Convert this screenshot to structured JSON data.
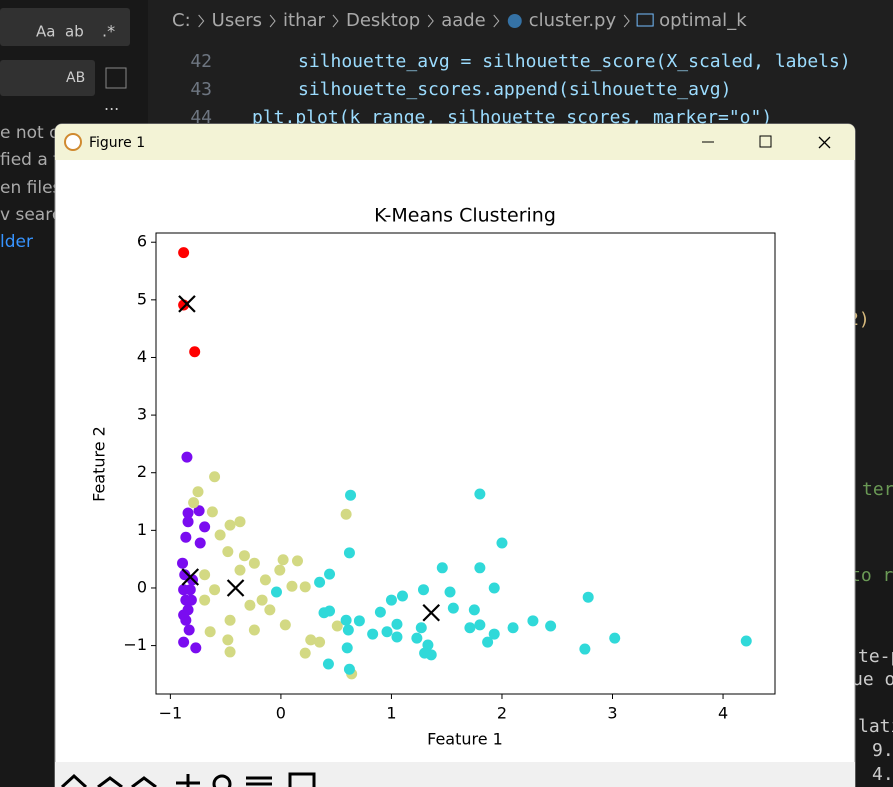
{
  "editor": {
    "search": {
      "options": [
        "Aa",
        "ab",
        ".*"
      ],
      "replace_option": "AB"
    },
    "sidebar_lines": [
      "e not o",
      "fied a f",
      "en files",
      "v search",
      "lder"
    ],
    "breadcrumb": [
      "C:",
      "Users",
      "ithar",
      "Desktop",
      "aade",
      "cluster.py",
      "optimal_k"
    ],
    "code_lines": [
      {
        "number": "42",
        "text": "silhouette_avg = silhouette_score(X_scaled, labels)"
      },
      {
        "number": "43",
        "text": "silhouette_scores.append(silhouette_avg)"
      },
      {
        "number": "44",
        "text": "plt.plot(k_range, silhouette_scores, marker=\"o\")"
      }
    ],
    "right_fragments": [
      "2)",
      "ter",
      "to r",
      "te-p",
      "ue o",
      "lati",
      "9.",
      "4."
    ]
  },
  "window": {
    "title": "Figure 1"
  },
  "chart_data": {
    "type": "scatter",
    "title": "K-Means Clustering",
    "x_label": "Feature 1",
    "y_label": "Feature 2",
    "xlim": [
      -1.13,
      4.47
    ],
    "ylim": [
      -1.84,
      6.16
    ],
    "xticks": [
      {
        "value": -1,
        "label": "−1"
      },
      0,
      1,
      2,
      3,
      4
    ],
    "yticks": [
      {
        "value": -1,
        "label": "−1"
      },
      0,
      1,
      2,
      3,
      4,
      5,
      6
    ],
    "series": [
      {
        "color": "#7a0cf0",
        "marker": "o",
        "x": [
          -0.85,
          -0.84,
          -0.84,
          -0.74,
          -0.86,
          -0.73,
          -0.89,
          -0.87,
          -0.8,
          -0.88,
          -0.86,
          -0.84,
          -0.86,
          -0.83,
          -0.88,
          -0.77,
          -0.81,
          -0.88,
          -0.82,
          -0.69
        ],
        "values": [
          2.27,
          1.3,
          1.15,
          1.34,
          0.88,
          0.78,
          0.43,
          0.23,
          0.14,
          -0.03,
          -0.21,
          -0.38,
          -0.56,
          -0.73,
          -0.94,
          -1.04,
          -0.21,
          -0.47,
          -0.03,
          1.06
        ]
      },
      {
        "color": "#d3d983",
        "marker": "o",
        "x": [
          -0.6,
          -0.75,
          -0.79,
          -0.62,
          -0.46,
          -0.37,
          -0.55,
          -0.48,
          -0.33,
          -0.24,
          0.02,
          0.15,
          -0.01,
          0.1,
          0.22,
          -0.17,
          -0.1,
          -0.28,
          -0.46,
          -0.48,
          -0.46,
          -0.64,
          -0.69,
          -0.6,
          -0.69,
          0.04,
          0.27,
          0.35,
          0.22,
          0.51,
          0.59,
          0.64,
          -0.24,
          -0.37,
          -0.14
        ],
        "values": [
          1.93,
          1.67,
          1.48,
          1.32,
          1.09,
          1.15,
          0.92,
          0.63,
          0.56,
          0.43,
          0.49,
          0.47,
          0.31,
          0.03,
          0.02,
          -0.21,
          -0.38,
          -0.3,
          -0.56,
          -0.9,
          -1.11,
          -0.76,
          -0.21,
          -0.03,
          0.23,
          -0.64,
          -0.9,
          -0.94,
          -1.13,
          -0.66,
          1.28,
          -1.49,
          -0.73,
          0.31,
          0.14
        ]
      },
      {
        "color": "#30d9d9",
        "marker": "o",
        "x": [
          0.63,
          0.62,
          -0.04,
          0.35,
          0.44,
          0.39,
          0.44,
          0.59,
          0.61,
          0.6,
          0.43,
          0.62,
          0.71,
          0.83,
          0.9,
          0.96,
          1.0,
          1.1,
          1.05,
          1.05,
          1.23,
          1.29,
          1.27,
          1.33,
          1.36,
          1.3,
          1.46,
          1.53,
          1.56,
          1.8,
          1.8,
          1.75,
          1.71,
          1.8,
          1.87,
          1.93,
          1.93,
          2.0,
          2.1,
          2.28,
          2.44,
          2.78,
          2.75,
          3.02,
          4.21
        ],
        "values": [
          1.61,
          0.61,
          -0.07,
          0.1,
          0.24,
          -0.43,
          -0.4,
          -0.56,
          -0.73,
          -1.04,
          -1.32,
          -1.41,
          -0.57,
          -0.8,
          -0.42,
          -0.76,
          -0.21,
          -0.14,
          -0.63,
          -0.85,
          -0.87,
          -0.03,
          -0.69,
          -0.99,
          -1.16,
          -1.13,
          0.35,
          -0.07,
          -0.35,
          1.63,
          0.35,
          -0.38,
          -0.69,
          -0.64,
          -0.94,
          -0.8,
          0.0,
          0.78,
          -0.69,
          -0.57,
          -0.66,
          -0.16,
          -1.06,
          -0.87,
          -0.92
        ]
      },
      {
        "color": "#ff0000",
        "marker": "o",
        "x": [
          -0.88,
          -0.88,
          -0.78
        ],
        "values": [
          5.82,
          4.91,
          4.1
        ]
      },
      {
        "color": "#000000",
        "marker": "x",
        "x": [
          -0.85,
          -0.82,
          -0.41,
          1.36
        ],
        "values": [
          4.93,
          0.19,
          0.0,
          -0.43
        ]
      }
    ]
  }
}
